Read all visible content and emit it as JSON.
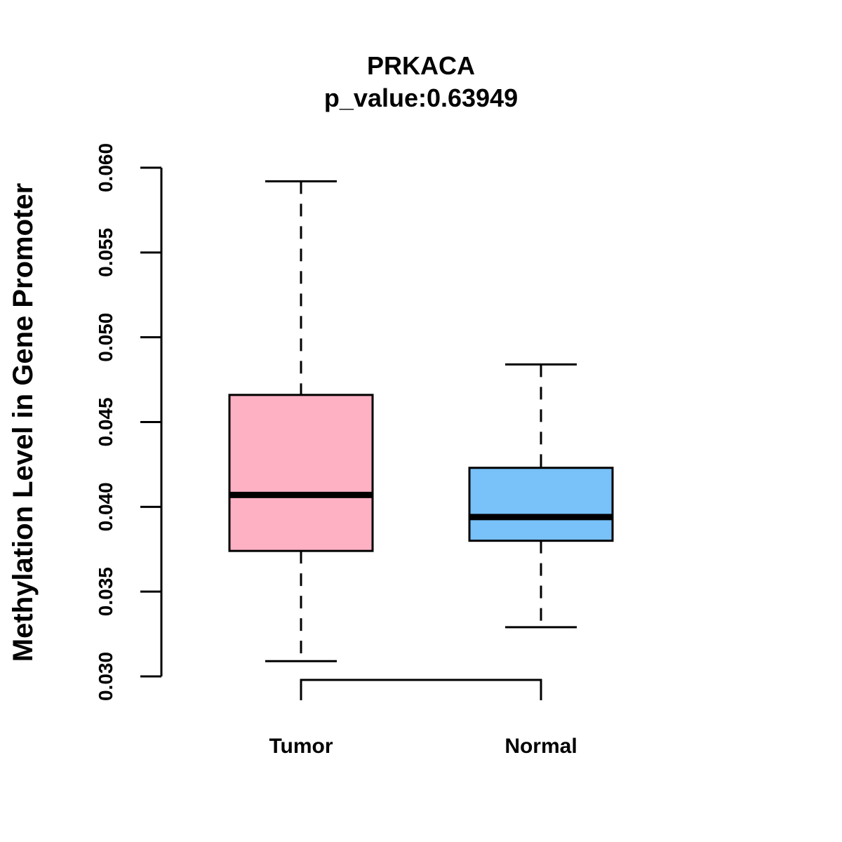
{
  "chart_data": {
    "type": "boxplot",
    "title": "PRKACA",
    "subtitle": "p_value:0.63949",
    "xlabel": "",
    "ylabel": "Methylation Level in Gene Promoter",
    "ylim": [
      0.03,
      0.06
    ],
    "yticks": [
      "0.030",
      "0.035",
      "0.040",
      "0.045",
      "0.050",
      "0.055",
      "0.060"
    ],
    "categories": [
      "Tumor",
      "Normal"
    ],
    "series": [
      {
        "name": "Tumor",
        "whisker_low": 0.0309,
        "q1": 0.0374,
        "median": 0.0407,
        "q3": 0.0466,
        "whisker_high": 0.0592,
        "color": "#FFB1C4"
      },
      {
        "name": "Normal",
        "whisker_low": 0.0329,
        "q1": 0.038,
        "median": 0.0394,
        "q3": 0.0423,
        "whisker_high": 0.0484,
        "color": "#78C1F9"
      }
    ],
    "comparison_bracket": [
      "Tumor",
      "Normal"
    ]
  }
}
